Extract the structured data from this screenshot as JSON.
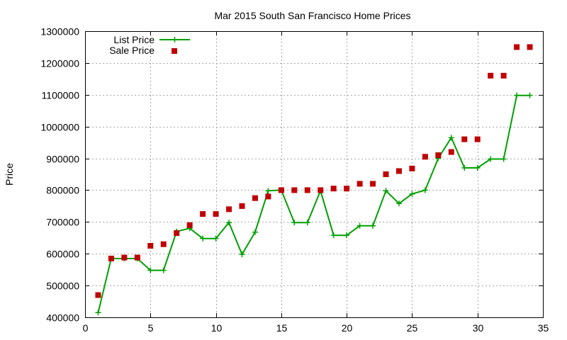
{
  "chart_data": {
    "type": "line",
    "title": "Mar 2015 South San Francisco Home Prices",
    "xlabel": "",
    "ylabel": "Price",
    "xlim": [
      0,
      35
    ],
    "ylim": [
      400000,
      1300000
    ],
    "xticks": [
      0,
      5,
      10,
      15,
      20,
      25,
      30,
      35
    ],
    "yticks": [
      400000,
      500000,
      600000,
      700000,
      800000,
      900000,
      1000000,
      1100000,
      1200000,
      1300000
    ],
    "grid": true,
    "legend_position": "top-left",
    "x": [
      1,
      2,
      3,
      4,
      5,
      6,
      7,
      8,
      9,
      10,
      11,
      12,
      13,
      14,
      15,
      16,
      17,
      18,
      19,
      20,
      21,
      22,
      23,
      24,
      25,
      26,
      27,
      28,
      29,
      30,
      31,
      32,
      33,
      34
    ],
    "series": [
      {
        "name": "List Price",
        "style": "line-points",
        "color": "#00a000",
        "values": [
          415000,
          585000,
          585000,
          585000,
          548000,
          548000,
          670000,
          680000,
          648000,
          648000,
          698000,
          598000,
          668000,
          798000,
          800000,
          698000,
          698000,
          798000,
          658000,
          658000,
          688000,
          688000,
          798000,
          758000,
          788000,
          800000,
          900000,
          965000,
          870000,
          870000,
          898000,
          898000,
          1098000,
          1098000
        ]
      },
      {
        "name": "Sale Price",
        "style": "points",
        "color": "#c00000",
        "values": [
          470000,
          585000,
          588000,
          588000,
          625000,
          630000,
          665000,
          690000,
          725000,
          725000,
          740000,
          750000,
          775000,
          780000,
          800000,
          800000,
          800000,
          800000,
          805000,
          805000,
          820000,
          820000,
          850000,
          860000,
          868000,
          905000,
          910000,
          920000,
          960000,
          960000,
          1160000,
          1160000,
          1250000,
          1250000
        ]
      }
    ]
  }
}
